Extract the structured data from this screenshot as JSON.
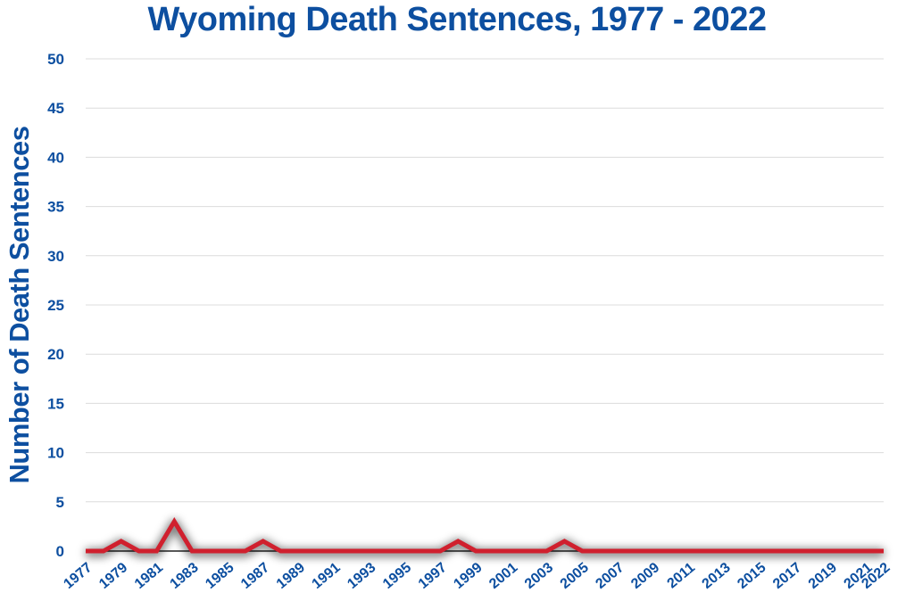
{
  "chart_data": {
    "type": "line",
    "title": "Wyoming Death Sentences, 1977 - 2022",
    "xlabel": "",
    "ylabel": "Number of Death Sentences",
    "ylim": [
      0,
      50
    ],
    "yticks": [
      0,
      5,
      10,
      15,
      20,
      25,
      30,
      35,
      40,
      45,
      50
    ],
    "grid": true,
    "x": [
      1977,
      1978,
      1979,
      1980,
      1981,
      1982,
      1983,
      1984,
      1985,
      1986,
      1987,
      1988,
      1989,
      1990,
      1991,
      1992,
      1993,
      1994,
      1995,
      1996,
      1997,
      1998,
      1999,
      2000,
      2001,
      2002,
      2003,
      2004,
      2005,
      2006,
      2007,
      2008,
      2009,
      2010,
      2011,
      2012,
      2013,
      2014,
      2015,
      2016,
      2017,
      2018,
      2019,
      2020,
      2021,
      2022
    ],
    "xtick_labels": [
      "1977",
      "1979",
      "1981",
      "1983",
      "1985",
      "1987",
      "1989",
      "1991",
      "1993",
      "1995",
      "1997",
      "1999",
      "2001",
      "2003",
      "2005",
      "2007",
      "2009",
      "2011",
      "2013",
      "2015",
      "2017",
      "2019",
      "2021",
      "2022"
    ],
    "series": [
      {
        "color": "#d0202e",
        "values": [
          0,
          0,
          1,
          0,
          0,
          3,
          0,
          0,
          0,
          0,
          1,
          0,
          0,
          0,
          0,
          0,
          0,
          0,
          0,
          0,
          0,
          1,
          0,
          0,
          0,
          0,
          0,
          1,
          0,
          0,
          0,
          0,
          0,
          0,
          0,
          0,
          0,
          0,
          0,
          0,
          0,
          0,
          0,
          0,
          0,
          0
        ]
      }
    ]
  }
}
